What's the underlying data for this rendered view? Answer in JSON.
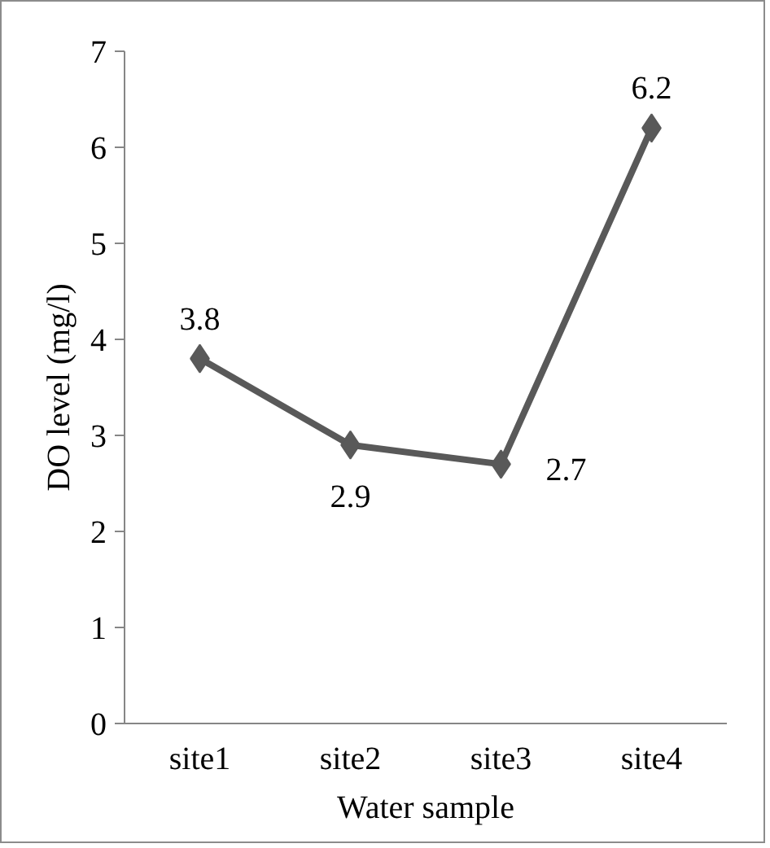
{
  "chart_data": {
    "type": "line",
    "xlabel": "Water sample",
    "ylabel": "DO level (mg/l)",
    "categories": [
      "site1",
      "site2",
      "site3",
      "site4"
    ],
    "series": [
      {
        "color": "#595959",
        "values": [
          3.8,
          2.9,
          2.7,
          6.2
        ]
      }
    ],
    "ylim": [
      0,
      7
    ],
    "yticks": [
      0,
      1,
      2,
      3,
      4,
      5,
      6,
      7
    ],
    "marker": "diamond",
    "line_style": "solid",
    "data_labels": true
  }
}
